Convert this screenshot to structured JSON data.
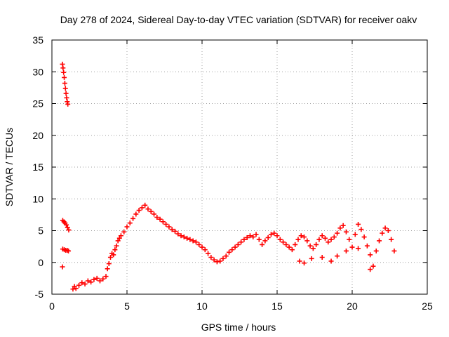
{
  "chart_data": {
    "type": "scatter",
    "title": "Day 278 of 2024, Sidereal Day-to-day VTEC variation (SDTVAR) for receiver oakv",
    "xlabel": "GPS time / hours",
    "ylabel": "SDTVAR / TECUs",
    "xlim": [
      0,
      25
    ],
    "ylim": [
      -5,
      35
    ],
    "xticks": [
      0,
      5,
      10,
      15,
      20,
      25
    ],
    "yticks": [
      -5,
      0,
      5,
      10,
      15,
      20,
      25,
      30,
      35
    ],
    "grid": true,
    "marker": "+",
    "series": [
      {
        "name": "oakv",
        "color": "#ff0000",
        "points": [
          [
            0.7,
            31.2
          ],
          [
            0.74,
            30.6
          ],
          [
            0.78,
            29.9
          ],
          [
            0.82,
            29.1
          ],
          [
            0.86,
            28.2
          ],
          [
            0.9,
            27.4
          ],
          [
            0.94,
            26.6
          ],
          [
            0.98,
            25.9
          ],
          [
            1.02,
            25.3
          ],
          [
            1.06,
            24.9
          ],
          [
            0.72,
            6.6
          ],
          [
            0.8,
            6.4
          ],
          [
            0.88,
            6.2
          ],
          [
            0.96,
            5.9
          ],
          [
            1.04,
            5.5
          ],
          [
            1.12,
            5.1
          ],
          [
            0.72,
            2.1
          ],
          [
            0.82,
            2.0
          ],
          [
            0.92,
            1.9
          ],
          [
            1.02,
            1.9
          ],
          [
            1.1,
            1.8
          ],
          [
            0.7,
            -0.7
          ],
          [
            1.4,
            -4.2
          ],
          [
            1.5,
            -3.8
          ],
          [
            1.6,
            -4.1
          ],
          [
            1.8,
            -3.6
          ],
          [
            2.0,
            -3.2
          ],
          [
            2.2,
            -3.4
          ],
          [
            2.4,
            -2.9
          ],
          [
            2.6,
            -3.1
          ],
          [
            2.8,
            -2.7
          ],
          [
            3.0,
            -2.5
          ],
          [
            3.2,
            -2.9
          ],
          [
            3.4,
            -2.6
          ],
          [
            3.6,
            -2.2
          ],
          [
            3.7,
            -1.0
          ],
          [
            3.8,
            -0.2
          ],
          [
            3.9,
            0.8
          ],
          [
            4.0,
            1.4
          ],
          [
            4.1,
            1.2
          ],
          [
            4.2,
            2.0
          ],
          [
            4.3,
            2.6
          ],
          [
            4.4,
            3.4
          ],
          [
            4.5,
            3.8
          ],
          [
            4.6,
            4.2
          ],
          [
            4.8,
            4.8
          ],
          [
            5.0,
            5.6
          ],
          [
            5.2,
            6.2
          ],
          [
            5.4,
            6.9
          ],
          [
            5.6,
            7.6
          ],
          [
            5.8,
            8.2
          ],
          [
            6.0,
            8.6
          ],
          [
            6.2,
            9.0
          ],
          [
            6.4,
            8.4
          ],
          [
            6.6,
            8.0
          ],
          [
            6.8,
            7.6
          ],
          [
            7.0,
            7.1
          ],
          [
            7.2,
            6.8
          ],
          [
            7.4,
            6.4
          ],
          [
            7.6,
            6.0
          ],
          [
            7.8,
            5.6
          ],
          [
            8.0,
            5.2
          ],
          [
            8.2,
            4.9
          ],
          [
            8.4,
            4.5
          ],
          [
            8.6,
            4.2
          ],
          [
            8.8,
            4.0
          ],
          [
            9.0,
            3.8
          ],
          [
            9.2,
            3.6
          ],
          [
            9.4,
            3.4
          ],
          [
            9.6,
            3.2
          ],
          [
            9.8,
            2.8
          ],
          [
            10.0,
            2.4
          ],
          [
            10.2,
            2.0
          ],
          [
            10.4,
            1.4
          ],
          [
            10.6,
            0.8
          ],
          [
            10.8,
            0.4
          ],
          [
            11.0,
            0.1
          ],
          [
            11.2,
            0.2
          ],
          [
            11.4,
            0.6
          ],
          [
            11.6,
            1.0
          ],
          [
            11.8,
            1.6
          ],
          [
            12.0,
            2.0
          ],
          [
            12.2,
            2.4
          ],
          [
            12.4,
            2.8
          ],
          [
            12.6,
            3.2
          ],
          [
            12.8,
            3.6
          ],
          [
            13.0,
            3.9
          ],
          [
            13.2,
            4.2
          ],
          [
            13.4,
            4.0
          ],
          [
            13.6,
            4.4
          ],
          [
            13.8,
            3.6
          ],
          [
            14.0,
            2.8
          ],
          [
            14.2,
            3.4
          ],
          [
            14.4,
            3.9
          ],
          [
            14.6,
            4.4
          ],
          [
            14.8,
            4.6
          ],
          [
            15.0,
            4.2
          ],
          [
            15.2,
            3.6
          ],
          [
            15.4,
            3.2
          ],
          [
            15.6,
            2.8
          ],
          [
            15.8,
            2.4
          ],
          [
            16.0,
            2.0
          ],
          [
            16.2,
            2.8
          ],
          [
            16.4,
            3.6
          ],
          [
            16.6,
            4.2
          ],
          [
            16.8,
            4.0
          ],
          [
            17.0,
            3.4
          ],
          [
            17.2,
            2.6
          ],
          [
            17.4,
            2.2
          ],
          [
            17.6,
            2.8
          ],
          [
            17.8,
            3.6
          ],
          [
            18.0,
            4.2
          ],
          [
            18.2,
            3.8
          ],
          [
            18.4,
            3.2
          ],
          [
            18.6,
            3.6
          ],
          [
            18.8,
            4.0
          ],
          [
            19.0,
            4.6
          ],
          [
            19.2,
            5.4
          ],
          [
            19.4,
            5.8
          ],
          [
            19.6,
            4.8
          ],
          [
            19.8,
            3.6
          ],
          [
            20.0,
            2.4
          ],
          [
            20.2,
            4.4
          ],
          [
            20.4,
            6.0
          ],
          [
            20.6,
            5.2
          ],
          [
            20.8,
            4.0
          ],
          [
            21.0,
            2.6
          ],
          [
            21.2,
            1.2
          ],
          [
            21.4,
            -0.6
          ],
          [
            21.6,
            1.8
          ],
          [
            21.8,
            3.4
          ],
          [
            22.0,
            4.6
          ],
          [
            22.2,
            5.4
          ],
          [
            22.4,
            5.0
          ],
          [
            22.6,
            3.6
          ],
          [
            22.8,
            1.8
          ],
          [
            16.5,
            0.2
          ],
          [
            16.8,
            -0.1
          ],
          [
            17.3,
            0.6
          ],
          [
            18.0,
            0.8
          ],
          [
            18.6,
            0.2
          ],
          [
            19.0,
            1.0
          ],
          [
            19.6,
            1.8
          ],
          [
            20.4,
            2.2
          ],
          [
            21.2,
            -1.1
          ]
        ]
      }
    ]
  }
}
